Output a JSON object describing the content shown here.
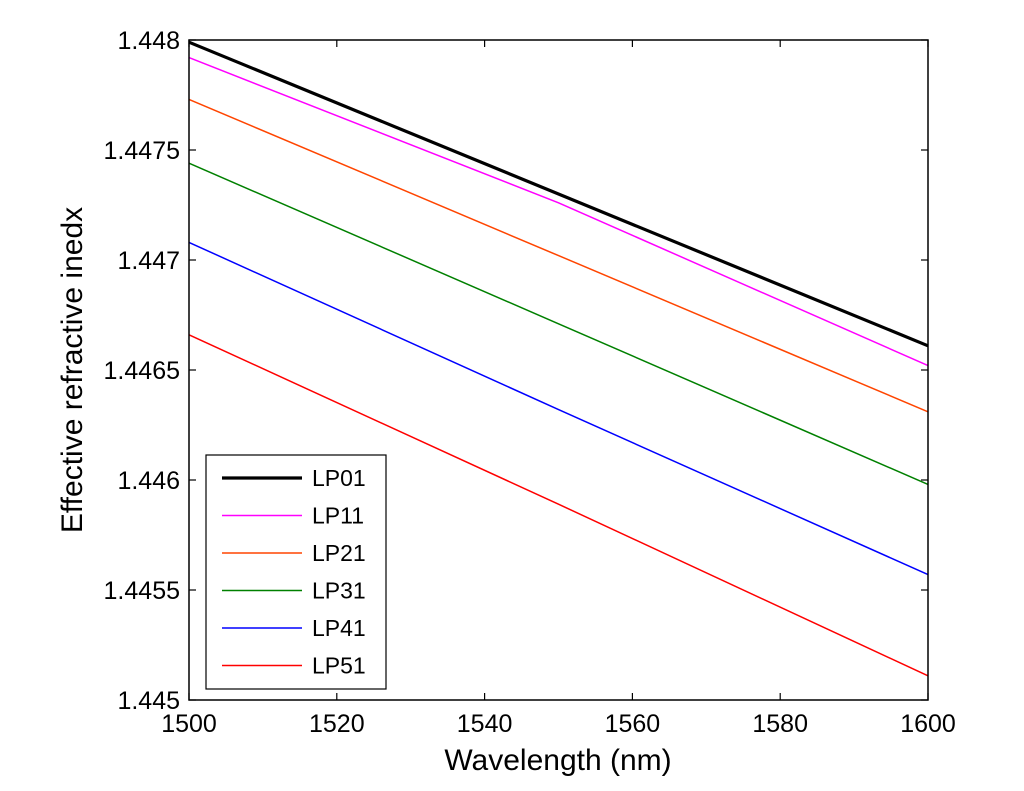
{
  "chart_data": {
    "type": "line",
    "title": "",
    "xlabel": "Wavelength (nm)",
    "ylabel": "Effective refractive inedx",
    "xlim": [
      1500,
      1600
    ],
    "ylim": [
      1.445,
      1.448
    ],
    "xticks": [
      1500,
      1520,
      1540,
      1560,
      1580,
      1600
    ],
    "yticks": [
      1.445,
      1.4455,
      1.446,
      1.4465,
      1.447,
      1.4475,
      1.448
    ],
    "xtick_labels": [
      "1500",
      "1520",
      "1540",
      "1560",
      "1580",
      "1600"
    ],
    "ytick_labels": [
      "1.445",
      "1.4455",
      "1.446",
      "1.4465",
      "1.447",
      "1.4475",
      "1.448"
    ],
    "grid": false,
    "legend_position": "bottom-left",
    "x": [
      1500,
      1550,
      1600
    ],
    "series": [
      {
        "name": "LP01",
        "color": "#000000",
        "values": [
          1.44799,
          1.4473,
          1.44661
        ]
      },
      {
        "name": "LP11",
        "color": "#ff00ff",
        "values": [
          1.44792,
          1.44726,
          1.44652
        ]
      },
      {
        "name": "LP21",
        "color": "#ff4500",
        "values": [
          1.44773,
          1.44702,
          1.44631
        ]
      },
      {
        "name": "LP31",
        "color": "#008000",
        "values": [
          1.44744,
          1.44671,
          1.44598
        ]
      },
      {
        "name": "LP41",
        "color": "#0000ff",
        "values": [
          1.44708,
          1.44632,
          1.44557
        ]
      },
      {
        "name": "LP51",
        "color": "#ff0000",
        "values": [
          1.44666,
          1.44589,
          1.44511
        ]
      }
    ]
  }
}
